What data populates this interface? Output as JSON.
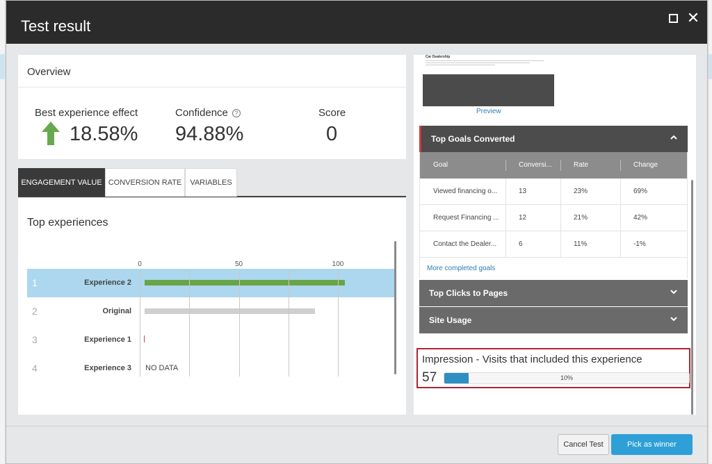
{
  "dialog": {
    "title": "Test result"
  },
  "overview": {
    "title": "Overview",
    "best_effect_label": "Best experience effect",
    "best_effect_value": "18.58%",
    "confidence_label": "Confidence",
    "confidence_value": "94.88%",
    "score_label": "Score",
    "score_value": "0"
  },
  "tabs": [
    "ENGAGEMENT VALUE",
    "CONVERSION RATE",
    "VARIABLES"
  ],
  "top_experiences": {
    "title": "Top experiences",
    "chart_data": {
      "type": "bar",
      "orientation": "horizontal",
      "ticks": [
        0,
        50,
        100
      ],
      "xlim": [
        0,
        100
      ],
      "categories": [
        "Experience 2",
        "Original",
        "Experience 1",
        "Experience 3"
      ],
      "ranks": [
        "1",
        "2",
        "3",
        "4"
      ],
      "values": [
        101,
        86,
        1,
        null
      ],
      "no_data_label": "NO DATA",
      "highlighted_index": 0,
      "colors": {
        "highlight_bar": "#6ba444",
        "bar": "#cfcfcf",
        "row_highlight": "#acd7ee"
      }
    }
  },
  "preview": {
    "page_title": "Car Dealership",
    "link": "Preview"
  },
  "goals": {
    "header": "Top Goals Converted",
    "columns": [
      "Goal",
      "Conversi...",
      "Rate",
      "Change"
    ],
    "rows": [
      {
        "goal": "Viewed financing o...",
        "conversions": "13",
        "rate": "23%",
        "change": "69%"
      },
      {
        "goal": "Request Financing ...",
        "conversions": "12",
        "rate": "21%",
        "change": "42%"
      },
      {
        "goal": "Contact the Dealer...",
        "conversions": "6",
        "rate": "11%",
        "change": "-1%"
      }
    ],
    "more_link": "More completed goals"
  },
  "accordions": {
    "clicks": "Top Clicks to Pages",
    "site_usage": "Site Usage"
  },
  "impression": {
    "label": "Impression - Visits that included this experience",
    "count": "57",
    "percent_label": "10%",
    "percent": 10,
    "color": "#2e8fc2"
  },
  "buttons": {
    "cancel": "Cancel Test",
    "pick": "Pick as winner"
  }
}
